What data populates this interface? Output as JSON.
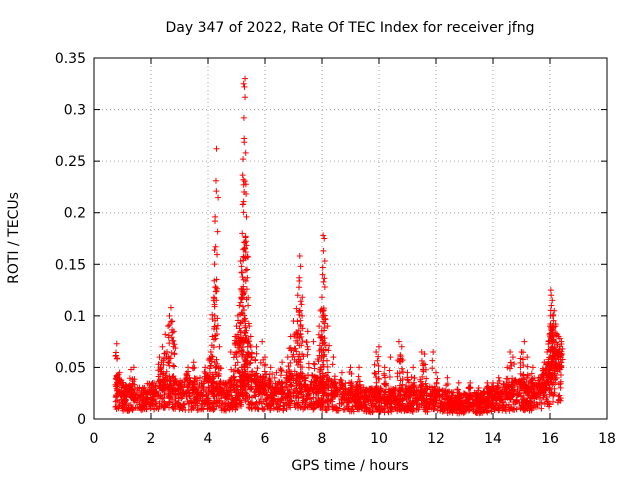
{
  "chart_data": {
    "type": "scatter",
    "title": "Day 347 of 2022, Rate Of TEC Index for receiver jfng",
    "xlabel": "GPS time / hours",
    "ylabel": "ROTI / TECUs",
    "xlim": [
      0,
      18
    ],
    "ylim": [
      0,
      0.35
    ],
    "xticks": [
      "0",
      "2",
      "4",
      "6",
      "8",
      "10",
      "12",
      "14",
      "16",
      "18"
    ],
    "yticks": [
      "0",
      "0.05",
      "0.1",
      "0.15",
      "0.2",
      "0.25",
      "0.3",
      "0.35"
    ],
    "grid": true,
    "marker": "+",
    "color": "#ff0000",
    "series": [
      {
        "name": "ROTI",
        "baseline_profile": [
          [
            0.75,
            0.028
          ],
          [
            1.0,
            0.022
          ],
          [
            1.5,
            0.018
          ],
          [
            2.0,
            0.022
          ],
          [
            2.5,
            0.028
          ],
          [
            3.0,
            0.025
          ],
          [
            3.5,
            0.024
          ],
          [
            4.0,
            0.026
          ],
          [
            4.5,
            0.022
          ],
          [
            5.0,
            0.026
          ],
          [
            5.5,
            0.028
          ],
          [
            6.0,
            0.025
          ],
          [
            6.5,
            0.022
          ],
          [
            7.0,
            0.027
          ],
          [
            7.5,
            0.026
          ],
          [
            8.0,
            0.024
          ],
          [
            8.5,
            0.022
          ],
          [
            9.0,
            0.021
          ],
          [
            9.5,
            0.019
          ],
          [
            10.0,
            0.018
          ],
          [
            10.5,
            0.018
          ],
          [
            11.0,
            0.019
          ],
          [
            11.5,
            0.021
          ],
          [
            12.0,
            0.018
          ],
          [
            12.5,
            0.016
          ],
          [
            13.0,
            0.015
          ],
          [
            13.5,
            0.016
          ],
          [
            14.0,
            0.018
          ],
          [
            14.5,
            0.022
          ],
          [
            15.0,
            0.024
          ],
          [
            15.5,
            0.022
          ],
          [
            16.0,
            0.035
          ],
          [
            16.4,
            0.05
          ]
        ],
        "peak_points": [
          [
            0.8,
            0.073
          ],
          [
            0.9,
            0.045
          ],
          [
            1.3,
            0.048
          ],
          [
            1.4,
            0.05
          ],
          [
            2.3,
            0.06
          ],
          [
            2.4,
            0.07
          ],
          [
            2.5,
            0.082
          ],
          [
            2.6,
            0.09
          ],
          [
            2.65,
            0.1
          ],
          [
            2.7,
            0.108
          ],
          [
            2.8,
            0.085
          ],
          [
            3.3,
            0.05
          ],
          [
            3.5,
            0.055
          ],
          [
            3.9,
            0.05
          ],
          [
            4.1,
            0.065
          ],
          [
            4.15,
            0.08
          ],
          [
            4.3,
            0.262
          ],
          [
            4.28,
            0.231
          ],
          [
            4.25,
            0.196
          ],
          [
            4.27,
            0.167
          ],
          [
            4.22,
            0.134
          ],
          [
            4.2,
            0.115
          ],
          [
            4.4,
            0.07
          ],
          [
            4.8,
            0.065
          ],
          [
            4.95,
            0.08
          ],
          [
            5.0,
            0.09
          ],
          [
            5.05,
            0.1
          ],
          [
            5.1,
            0.11
          ],
          [
            5.15,
            0.113
          ],
          [
            5.18,
            0.148
          ],
          [
            5.2,
            0.18
          ],
          [
            5.22,
            0.208
          ],
          [
            5.24,
            0.232
          ],
          [
            5.23,
            0.252
          ],
          [
            5.27,
            0.272
          ],
          [
            5.26,
            0.292
          ],
          [
            5.3,
            0.312
          ],
          [
            5.28,
            0.322
          ],
          [
            5.3,
            0.33
          ],
          [
            5.25,
            0.325
          ],
          [
            5.32,
            0.177
          ],
          [
            5.35,
            0.196
          ],
          [
            5.38,
            0.137
          ],
          [
            5.4,
            0.157
          ],
          [
            5.45,
            0.09
          ],
          [
            5.5,
            0.08
          ],
          [
            5.7,
            0.07
          ],
          [
            5.9,
            0.075
          ],
          [
            6.0,
            0.06
          ],
          [
            6.2,
            0.05
          ],
          [
            6.4,
            0.045
          ],
          [
            6.6,
            0.055
          ],
          [
            6.8,
            0.06
          ],
          [
            6.9,
            0.08
          ],
          [
            7.0,
            0.095
          ],
          [
            7.1,
            0.107
          ],
          [
            7.15,
            0.12
          ],
          [
            7.2,
            0.137
          ],
          [
            7.25,
            0.148
          ],
          [
            7.22,
            0.158
          ],
          [
            7.3,
            0.1
          ],
          [
            7.5,
            0.085
          ],
          [
            7.7,
            0.075
          ],
          [
            7.9,
            0.09
          ],
          [
            7.95,
            0.105
          ],
          [
            8.0,
            0.118
          ],
          [
            8.02,
            0.14
          ],
          [
            8.05,
            0.163
          ],
          [
            8.04,
            0.178
          ],
          [
            8.08,
            0.175
          ],
          [
            8.1,
            0.128
          ],
          [
            8.2,
            0.09
          ],
          [
            8.4,
            0.06
          ],
          [
            8.7,
            0.045
          ],
          [
            9.0,
            0.05
          ],
          [
            9.3,
            0.05
          ],
          [
            9.9,
            0.065
          ],
          [
            10.0,
            0.07
          ],
          [
            10.2,
            0.05
          ],
          [
            10.4,
            0.06
          ],
          [
            10.7,
            0.075
          ],
          [
            10.8,
            0.07
          ],
          [
            11.0,
            0.045
          ],
          [
            11.2,
            0.05
          ],
          [
            11.5,
            0.065
          ],
          [
            11.6,
            0.063
          ],
          [
            11.9,
            0.065
          ],
          [
            12.0,
            0.045
          ],
          [
            12.4,
            0.04
          ],
          [
            12.8,
            0.035
          ],
          [
            13.2,
            0.035
          ],
          [
            13.5,
            0.03
          ],
          [
            13.8,
            0.035
          ],
          [
            14.0,
            0.035
          ],
          [
            14.2,
            0.04
          ],
          [
            14.5,
            0.05
          ],
          [
            14.6,
            0.065
          ],
          [
            14.7,
            0.06
          ],
          [
            15.0,
            0.065
          ],
          [
            15.1,
            0.075
          ],
          [
            15.2,
            0.06
          ],
          [
            15.4,
            0.05
          ],
          [
            15.6,
            0.04
          ],
          [
            15.8,
            0.055
          ],
          [
            15.9,
            0.065
          ],
          [
            15.95,
            0.075
          ],
          [
            16.0,
            0.09
          ],
          [
            16.02,
            0.1
          ],
          [
            16.05,
            0.11
          ],
          [
            16.04,
            0.12
          ],
          [
            16.03,
            0.125
          ],
          [
            16.08,
            0.115
          ],
          [
            16.1,
            0.1
          ],
          [
            16.15,
            0.105
          ],
          [
            16.2,
            0.09
          ],
          [
            16.3,
            0.08
          ],
          [
            16.35,
            0.07
          ],
          [
            16.4,
            0.075
          ]
        ]
      }
    ]
  }
}
